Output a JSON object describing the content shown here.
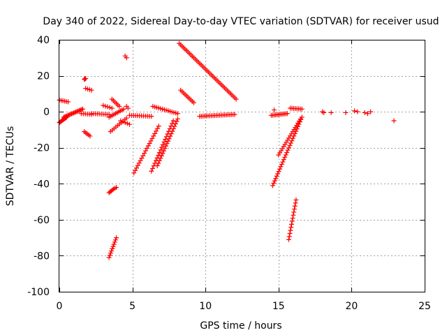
{
  "chart_data": {
    "type": "scatter",
    "title": "Day 340 of 2022, Sidereal Day-to-day VTEC variation (SDTVAR) for receiver usud",
    "xlabel": "GPS time / hours",
    "ylabel": "SDTVAR / TECUs",
    "xlim": [
      0,
      25
    ],
    "ylim": [
      -100,
      40
    ],
    "xticks": [
      0,
      5,
      10,
      15,
      20,
      25
    ],
    "yticks": [
      -100,
      -80,
      -60,
      -40,
      -20,
      0,
      20,
      40
    ],
    "grid": true,
    "marker": "+",
    "color": "#ff0000",
    "segments": [
      {
        "name": "arc-a",
        "x0": 0.0,
        "y0": -6,
        "x1": 0.5,
        "y1": -3,
        "n": 10
      },
      {
        "name": "arc-b",
        "x0": 0.0,
        "y0": 6.5,
        "x1": 0.6,
        "y1": 5.5,
        "n": 6
      },
      {
        "name": "arc-c",
        "x0": 0.3,
        "y0": -3,
        "x1": 1.6,
        "y1": 1.5,
        "n": 18
      },
      {
        "name": "arc-d",
        "x0": 1.5,
        "y0": -1,
        "x1": 2.2,
        "y1": -1.5,
        "n": 6
      },
      {
        "name": "arc-e",
        "x0": 1.7,
        "y0": 18,
        "x1": 1.8,
        "y1": 18.5,
        "n": 3
      },
      {
        "name": "arc-f",
        "x0": 1.8,
        "y0": 13,
        "x1": 2.2,
        "y1": 12,
        "n": 4
      },
      {
        "name": "arc-g",
        "x0": 1.7,
        "y0": -11,
        "x1": 2.1,
        "y1": -13.5,
        "n": 5
      },
      {
        "name": "arc-h",
        "x0": 2.2,
        "y0": -1,
        "x1": 3.4,
        "y1": -1.5,
        "n": 10
      },
      {
        "name": "arc-i",
        "x0": 3.0,
        "y0": 3.5,
        "x1": 3.6,
        "y1": 2,
        "n": 5
      },
      {
        "name": "arc-j",
        "x0": 3.6,
        "y0": 7,
        "x1": 4.1,
        "y1": 3,
        "n": 6
      },
      {
        "name": "arc-k",
        "x0": 3.4,
        "y0": -3,
        "x1": 4.4,
        "y1": 1.5,
        "n": 10
      },
      {
        "name": "arc-l",
        "x0": 3.5,
        "y0": -11,
        "x1": 4.6,
        "y1": -3.5,
        "n": 10
      },
      {
        "name": "arc-m",
        "x0": 4.2,
        "y0": -5,
        "x1": 4.8,
        "y1": -7,
        "n": 5
      },
      {
        "name": "arc-n",
        "x0": 4.5,
        "y0": 31,
        "x1": 4.6,
        "y1": 30,
        "n": 2
      },
      {
        "name": "arc-o",
        "x0": 4.6,
        "y0": 3,
        "x1": 4.7,
        "y1": 2,
        "n": 2
      },
      {
        "name": "arc-p",
        "x0": 3.4,
        "y0": -45,
        "x1": 3.7,
        "y1": -43,
        "n": 5
      },
      {
        "name": "arc-q",
        "x0": 3.8,
        "y0": -42.5,
        "x1": 3.9,
        "y1": -42,
        "n": 2
      },
      {
        "name": "arc-r",
        "x0": 3.4,
        "y0": -81,
        "x1": 3.9,
        "y1": -70,
        "n": 10
      },
      {
        "name": "arc-s",
        "x0": 4.8,
        "y0": -2,
        "x1": 6.3,
        "y1": -2.5,
        "n": 12
      },
      {
        "name": "arc-t",
        "x0": 5.1,
        "y0": -34,
        "x1": 6.8,
        "y1": -8,
        "n": 20
      },
      {
        "name": "arc-u",
        "x0": 6.3,
        "y0": -33,
        "x1": 7.8,
        "y1": -5,
        "n": 20
      },
      {
        "name": "arc-v",
        "x0": 6.7,
        "y0": -30,
        "x1": 8.1,
        "y1": -4,
        "n": 20
      },
      {
        "name": "arc-w",
        "x0": 6.4,
        "y0": 3,
        "x1": 8.1,
        "y1": -1,
        "n": 14
      },
      {
        "name": "arc-x",
        "x0": 8.2,
        "y0": 38,
        "x1": 12.1,
        "y1": 7,
        "n": 40
      },
      {
        "name": "arc-y",
        "x0": 8.3,
        "y0": 12,
        "x1": 9.2,
        "y1": 5,
        "n": 10
      },
      {
        "name": "arc-z",
        "x0": 9.6,
        "y0": -2.5,
        "x1": 12.0,
        "y1": -1.5,
        "n": 22
      },
      {
        "name": "arc-aa",
        "x0": 14.6,
        "y0": -41,
        "x1": 16.6,
        "y1": -3,
        "n": 30
      },
      {
        "name": "arc-ab",
        "x0": 15.0,
        "y0": -24,
        "x1": 16.5,
        "y1": -4,
        "n": 18
      },
      {
        "name": "arc-ac",
        "x0": 14.5,
        "y0": -2,
        "x1": 15.6,
        "y1": -1,
        "n": 12
      },
      {
        "name": "arc-ad",
        "x0": 15.8,
        "y0": 2,
        "x1": 16.6,
        "y1": 1.5,
        "n": 8
      },
      {
        "name": "arc-ae",
        "x0": 15.7,
        "y0": -71,
        "x1": 16.2,
        "y1": -49,
        "n": 14
      }
    ],
    "points": [
      {
        "x": 18.0,
        "y": 0
      },
      {
        "x": 18.1,
        "y": -0.5
      },
      {
        "x": 18.6,
        "y": -0.5
      },
      {
        "x": 19.6,
        "y": -0.5
      },
      {
        "x": 20.2,
        "y": 0.5
      },
      {
        "x": 20.4,
        "y": 0
      },
      {
        "x": 20.9,
        "y": -0.5
      },
      {
        "x": 21.1,
        "y": -1
      },
      {
        "x": 21.3,
        "y": 0
      },
      {
        "x": 22.9,
        "y": -5
      },
      {
        "x": 14.7,
        "y": 1
      }
    ]
  }
}
